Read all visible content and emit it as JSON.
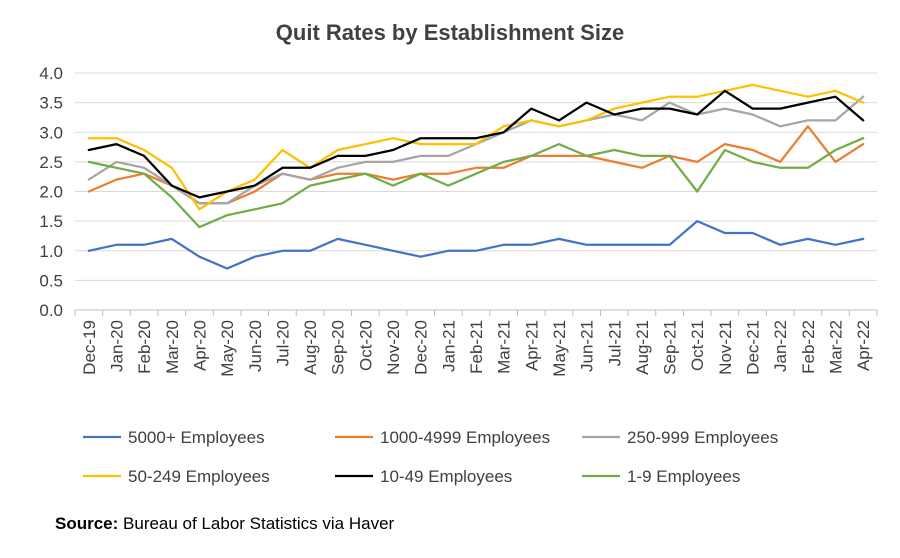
{
  "chart_data": {
    "type": "line",
    "title": "Quit Rates by Establishment Size",
    "xlabel": "",
    "ylabel": "",
    "ylim": [
      0,
      4
    ],
    "yticks": [
      "0.0",
      "0.5",
      "1.0",
      "1.5",
      "2.0",
      "2.5",
      "3.0",
      "3.5",
      "4.0"
    ],
    "grid": true,
    "legend_position": "bottom",
    "categories": [
      "Dec-19",
      "Jan-20",
      "Feb-20",
      "Mar-20",
      "Apr-20",
      "May-20",
      "Jun-20",
      "Jul-20",
      "Aug-20",
      "Sep-20",
      "Oct-20",
      "Nov-20",
      "Dec-20",
      "Jan-21",
      "Feb-21",
      "Mar-21",
      "Apr-21",
      "May-21",
      "Jun-21",
      "Jul-21",
      "Aug-21",
      "Sep-21",
      "Oct-21",
      "Nov-21",
      "Dec-21",
      "Jan-22",
      "Feb-22",
      "Mar-22",
      "Apr-22"
    ],
    "series": [
      {
        "name": "5000+ Employees",
        "color": "#4472C4",
        "values": [
          1.0,
          1.1,
          1.1,
          1.2,
          0.9,
          0.7,
          0.9,
          1.0,
          1.0,
          1.2,
          1.1,
          1.0,
          0.9,
          1.0,
          1.0,
          1.1,
          1.1,
          1.2,
          1.1,
          1.1,
          1.1,
          1.1,
          1.5,
          1.3,
          1.3,
          1.1,
          1.2,
          1.1,
          1.2
        ]
      },
      {
        "name": "1000-4999 Employees",
        "color": "#ED7D31",
        "values": [
          2.0,
          2.2,
          2.3,
          2.1,
          1.8,
          1.8,
          2.0,
          2.3,
          2.2,
          2.3,
          2.3,
          2.2,
          2.3,
          2.3,
          2.4,
          2.4,
          2.6,
          2.6,
          2.6,
          2.5,
          2.4,
          2.6,
          2.5,
          2.8,
          2.7,
          2.5,
          3.1,
          2.5,
          2.8
        ]
      },
      {
        "name": "250-999 Employees",
        "color": "#A5A5A5",
        "values": [
          2.2,
          2.5,
          2.4,
          2.1,
          1.8,
          1.8,
          2.1,
          2.3,
          2.2,
          2.4,
          2.5,
          2.5,
          2.6,
          2.6,
          2.8,
          3.0,
          3.2,
          3.1,
          3.2,
          3.3,
          3.2,
          3.5,
          3.3,
          3.4,
          3.3,
          3.1,
          3.2,
          3.2,
          3.6
        ]
      },
      {
        "name": "50-249 Employees",
        "color": "#FFC000",
        "values": [
          2.9,
          2.9,
          2.7,
          2.4,
          1.7,
          2.0,
          2.2,
          2.7,
          2.4,
          2.7,
          2.8,
          2.9,
          2.8,
          2.8,
          2.8,
          3.1,
          3.2,
          3.1,
          3.2,
          3.4,
          3.5,
          3.6,
          3.6,
          3.7,
          3.8,
          3.7,
          3.6,
          3.7,
          3.5
        ]
      },
      {
        "name": "10-49 Employees",
        "color": "#000000",
        "values": [
          2.7,
          2.8,
          2.6,
          2.1,
          1.9,
          2.0,
          2.1,
          2.4,
          2.4,
          2.6,
          2.6,
          2.7,
          2.9,
          2.9,
          2.9,
          3.0,
          3.4,
          3.2,
          3.5,
          3.3,
          3.4,
          3.4,
          3.3,
          3.7,
          3.4,
          3.4,
          3.5,
          3.6,
          3.2
        ]
      },
      {
        "name": "1-9 Employees",
        "color": "#70AD47",
        "values": [
          2.5,
          2.4,
          2.3,
          1.9,
          1.4,
          1.6,
          1.7,
          1.8,
          2.1,
          2.2,
          2.3,
          2.1,
          2.3,
          2.1,
          2.3,
          2.5,
          2.6,
          2.8,
          2.6,
          2.7,
          2.6,
          2.6,
          2.0,
          2.7,
          2.5,
          2.4,
          2.4,
          2.7,
          2.9
        ]
      }
    ]
  },
  "source": {
    "label": "Source:",
    "text": " Bureau of Labor Statistics via Haver"
  }
}
